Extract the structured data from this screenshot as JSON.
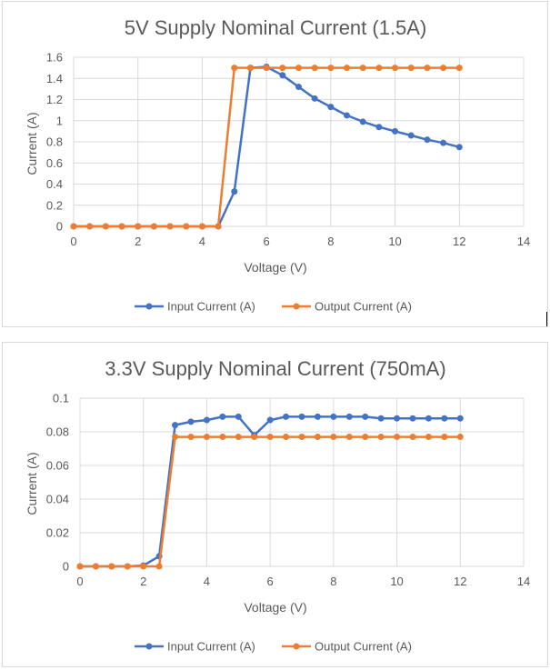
{
  "chart_data": [
    {
      "type": "line",
      "title": "5V Supply Nominal Current (1.5A)",
      "xlabel": "Voltage (V)",
      "ylabel": "Current (A)",
      "xlim": [
        0,
        14
      ],
      "ylim": [
        0,
        1.6
      ],
      "xticks": [
        "0",
        "2",
        "4",
        "6",
        "8",
        "10",
        "12",
        "14"
      ],
      "yticks": [
        "0",
        "0.2",
        "0.4",
        "0.6",
        "0.8",
        "1",
        "1.2",
        "1.4",
        "1.6"
      ],
      "grid": true,
      "legend": "bottom",
      "series": [
        {
          "name": "Input Current (A)",
          "color": "#4472c4",
          "x": [
            0,
            0.5,
            1,
            1.5,
            2,
            2.5,
            3,
            3.5,
            4,
            4.5,
            5,
            5.5,
            6,
            6.5,
            7,
            7.5,
            8,
            8.5,
            9,
            9.5,
            10,
            10.5,
            11,
            11.5,
            12
          ],
          "y": [
            0,
            0,
            0,
            0,
            0,
            0,
            0,
            0,
            0,
            0,
            0.33,
            1.5,
            1.51,
            1.43,
            1.32,
            1.21,
            1.13,
            1.05,
            0.99,
            0.94,
            0.9,
            0.86,
            0.82,
            0.79,
            0.75
          ]
        },
        {
          "name": "Output Current (A)",
          "color": "#ed7d31",
          "x": [
            0,
            0.5,
            1,
            1.5,
            2,
            2.5,
            3,
            3.5,
            4,
            4.5,
            5,
            5.5,
            6,
            6.5,
            7,
            7.5,
            8,
            8.5,
            9,
            9.5,
            10,
            10.5,
            11,
            11.5,
            12
          ],
          "y": [
            0,
            0,
            0,
            0,
            0,
            0,
            0,
            0,
            0,
            0,
            1.5,
            1.5,
            1.5,
            1.5,
            1.5,
            1.5,
            1.5,
            1.5,
            1.5,
            1.5,
            1.5,
            1.5,
            1.5,
            1.5,
            1.5
          ]
        }
      ]
    },
    {
      "type": "line",
      "title": "3.3V Supply Nominal Current (750mA)",
      "xlabel": "Voltage (V)",
      "ylabel": "Current (A)",
      "xlim": [
        0,
        14
      ],
      "ylim": [
        0,
        0.1
      ],
      "xticks": [
        "0",
        "2",
        "4",
        "6",
        "8",
        "10",
        "12",
        "14"
      ],
      "yticks": [
        "0",
        "0.02",
        "0.04",
        "0.06",
        "0.08",
        "0.1"
      ],
      "grid": true,
      "legend": "bottom",
      "series": [
        {
          "name": "Input Current (A)",
          "color": "#4472c4",
          "x": [
            0,
            0.5,
            1,
            1.5,
            2,
            2.5,
            3,
            3.5,
            4,
            4.5,
            5,
            5.5,
            6,
            6.5,
            7,
            7.5,
            8,
            8.5,
            9,
            9.5,
            10,
            10.5,
            11,
            11.5,
            12
          ],
          "y": [
            0,
            0,
            0,
            0,
            0.0005,
            0.006,
            0.084,
            0.086,
            0.087,
            0.089,
            0.089,
            0.078,
            0.087,
            0.089,
            0.089,
            0.089,
            0.089,
            0.089,
            0.089,
            0.088,
            0.088,
            0.088,
            0.088,
            0.088,
            0.088
          ]
        },
        {
          "name": "Output Current (A)",
          "color": "#ed7d31",
          "x": [
            0,
            0.5,
            1,
            1.5,
            2,
            2.5,
            3,
            3.5,
            4,
            4.5,
            5,
            5.5,
            6,
            6.5,
            7,
            7.5,
            8,
            8.5,
            9,
            9.5,
            10,
            10.5,
            11,
            11.5,
            12
          ],
          "y": [
            0,
            0,
            0,
            0,
            0,
            0,
            0.077,
            0.077,
            0.077,
            0.077,
            0.077,
            0.077,
            0.077,
            0.077,
            0.077,
            0.077,
            0.077,
            0.077,
            0.077,
            0.077,
            0.077,
            0.077,
            0.077,
            0.077,
            0.077
          ]
        }
      ]
    }
  ]
}
